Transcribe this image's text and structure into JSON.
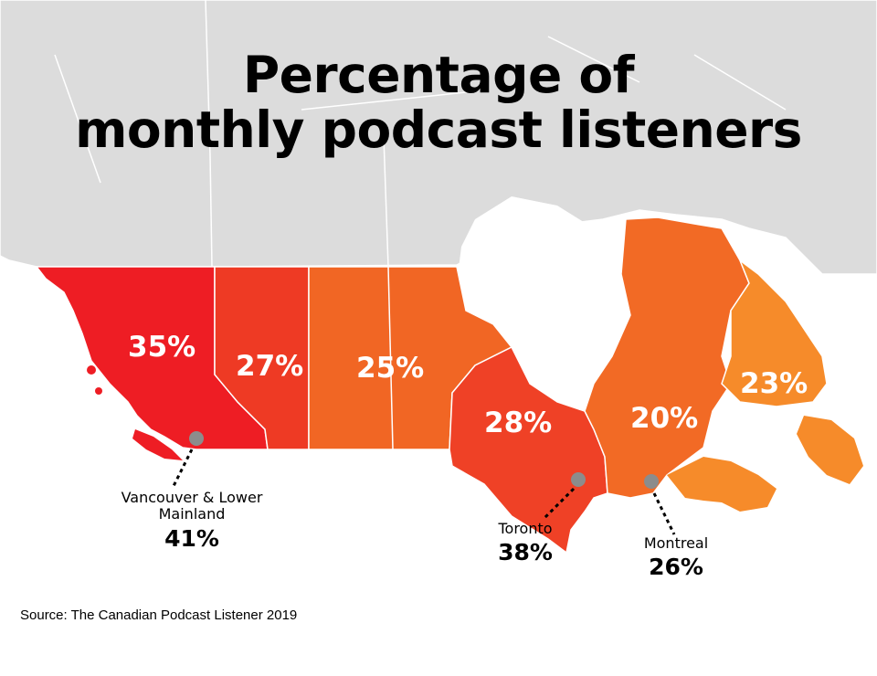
{
  "title_line1": "Percentage of",
  "title_line2": "monthly podcast listeners",
  "colors": {
    "land_gray": "#dcdcdc",
    "bc": "#ee1d24",
    "alberta": "#ee3a24",
    "prairies": "#f16624",
    "ontario": "#ef4126",
    "quebec": "#f26a25",
    "atlantic": "#f68b2a",
    "city_marker": "#8c8c8c",
    "borders": "#ffffff"
  },
  "regions": [
    {
      "name": "British Columbia",
      "value": "35%"
    },
    {
      "name": "Alberta",
      "value": "27%"
    },
    {
      "name": "Prairies",
      "value": "25%"
    },
    {
      "name": "Ontario",
      "value": "28%"
    },
    {
      "name": "Quebec",
      "value": "20%"
    },
    {
      "name": "Atlantic",
      "value": "23%"
    }
  ],
  "cities": [
    {
      "name": "Vancouver & Lower Mainland",
      "value": "41%"
    },
    {
      "name": "Toronto",
      "value": "38%"
    },
    {
      "name": "Montreal",
      "value": "26%"
    }
  ],
  "source": "Source: The Canadian Podcast Listener 2019"
}
